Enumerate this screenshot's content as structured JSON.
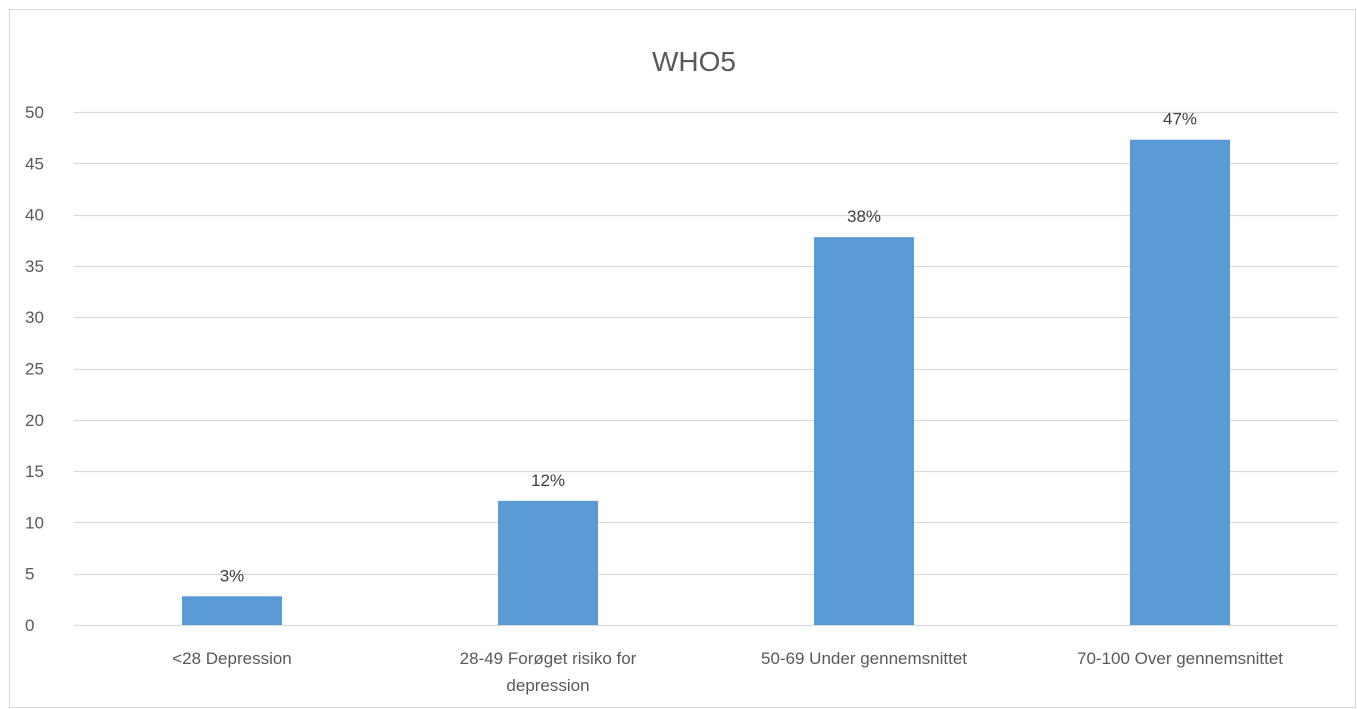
{
  "chart_data": {
    "type": "bar",
    "title": "WHO5",
    "xlabel": "",
    "ylabel": "",
    "categories": [
      [
        "<28 Depression"
      ],
      [
        "28-49 Forøget risiko for",
        "depression"
      ],
      [
        "50-69 Under gennemsnittet"
      ],
      [
        "70-100 Over gennemsnittet"
      ]
    ],
    "values": [
      2.8,
      12.1,
      37.8,
      47.3
    ],
    "data_labels": [
      "3%",
      "12%",
      "38%",
      "47%"
    ],
    "ylim": [
      0,
      50
    ],
    "yticks": [
      0,
      5,
      10,
      15,
      20,
      25,
      30,
      35,
      40,
      45,
      50
    ],
    "grid": true,
    "legend": "none",
    "bar_color": "#5b9bd5",
    "grid_color": "#d9d9d9"
  }
}
